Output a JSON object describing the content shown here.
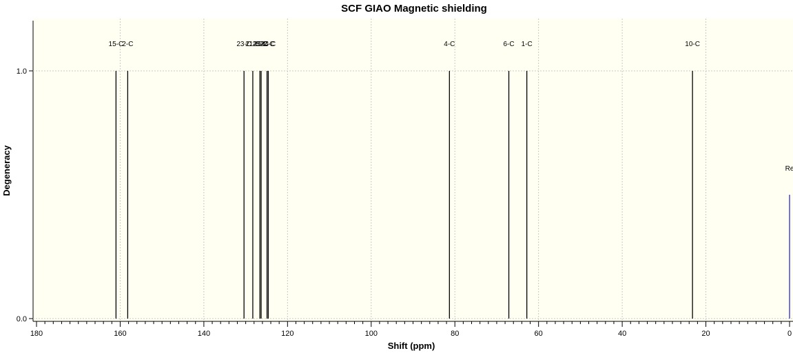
{
  "chart_data": {
    "type": "bar",
    "title": "SCF GIAO Magnetic shielding",
    "xlabel": "Shift (ppm)",
    "ylabel": "Degeneracy",
    "xlim": [
      180,
      0
    ],
    "ylim": [
      0,
      1.2
    ],
    "x_ticks": [
      180,
      160,
      140,
      120,
      100,
      80,
      60,
      40,
      20,
      0
    ],
    "y_ticks": [
      {
        "value": 0.0,
        "label": "0.0"
      },
      {
        "value": 1.0,
        "label": "1.0"
      }
    ],
    "grid": true,
    "peaks": [
      {
        "x": 161.0,
        "y": 1.0,
        "label": "15-C"
      },
      {
        "x": 158.2,
        "y": 1.0,
        "label": "2-C"
      },
      {
        "x": 130.4,
        "y": 1.0,
        "label": "23-C"
      },
      {
        "x": 128.3,
        "y": 1.0,
        "label": "21-C"
      },
      {
        "x": 126.6,
        "y": 1.0,
        "label": "25-C"
      },
      {
        "x": 126.3,
        "y": 1.0,
        "label": "26-C"
      },
      {
        "x": 124.9,
        "y": 1.0,
        "label": "22-C"
      },
      {
        "x": 124.6,
        "y": 1.0,
        "label": "24-C"
      },
      {
        "x": 81.3,
        "y": 1.0,
        "label": "4-C"
      },
      {
        "x": 67.1,
        "y": 1.0,
        "label": "6-C"
      },
      {
        "x": 62.8,
        "y": 1.0,
        "label": "1-C"
      },
      {
        "x": 23.2,
        "y": 1.0,
        "label": "10-C"
      },
      {
        "x": 0.0,
        "y": 0.5,
        "label": "Re",
        "color": "#2a2acc"
      }
    ],
    "colors": {
      "plot_background": "#fffff2",
      "peak": "#000000",
      "reference_peak": "#2a2acc",
      "grid": "#c8c8c8"
    }
  }
}
